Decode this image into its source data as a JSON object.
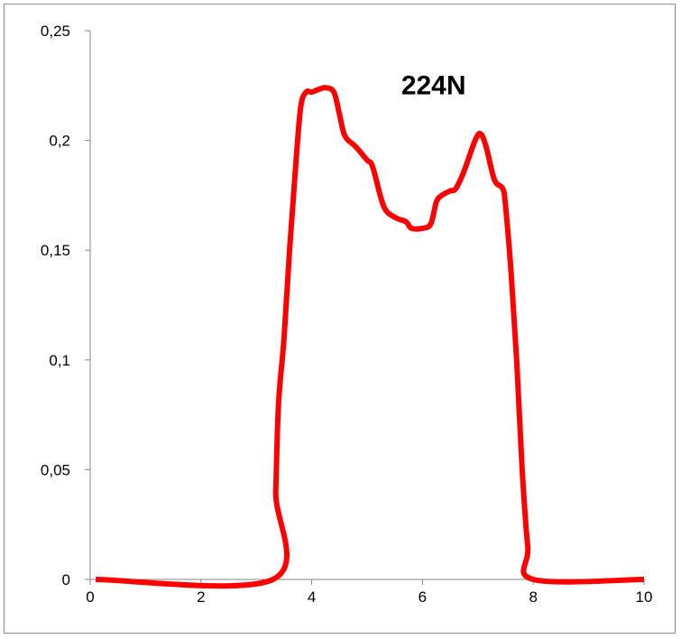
{
  "colors": {
    "series": "#ff0000",
    "axis": "#868686",
    "frame": "#8c8c8c"
  },
  "chart_data": {
    "type": "line",
    "title": "",
    "xlabel": "",
    "ylabel": "",
    "xlim": [
      0,
      10
    ],
    "ylim": [
      0,
      0.25
    ],
    "grid": false,
    "legend": "none",
    "x_ticks": [
      {
        "value": 0,
        "label": "0"
      },
      {
        "value": 2,
        "label": "2"
      },
      {
        "value": 4,
        "label": "4"
      },
      {
        "value": 6,
        "label": "6"
      },
      {
        "value": 8,
        "label": "8"
      },
      {
        "value": 10,
        "label": "10"
      }
    ],
    "y_ticks": [
      {
        "value": 0,
        "label": "0"
      },
      {
        "value": 0.05,
        "label": "0,05"
      },
      {
        "value": 0.1,
        "label": "0,1"
      },
      {
        "value": 0.15,
        "label": "0,15"
      },
      {
        "value": 0.2,
        "label": "0,2"
      },
      {
        "value": 0.25,
        "label": "0,25"
      }
    ],
    "annotations": [
      {
        "text": "224N",
        "x": 6.2,
        "y": 0.221
      }
    ],
    "series": [
      {
        "color": "#ff0000",
        "x": [
          0.1,
          3.3,
          3.35,
          3.4,
          3.5,
          3.6,
          3.7,
          3.8,
          3.9,
          4.0,
          4.1,
          4.25,
          4.4,
          4.5,
          4.6,
          4.8,
          5.0,
          5.1,
          5.3,
          5.5,
          5.7,
          5.8,
          6.0,
          6.15,
          6.25,
          6.35,
          6.5,
          6.6,
          6.75,
          6.95,
          7.05,
          7.15,
          7.3,
          7.45,
          7.5,
          7.6,
          7.7,
          7.8,
          7.9,
          8.0,
          10.0
        ],
        "y": [
          0,
          0,
          0.04,
          0.08,
          0.11,
          0.15,
          0.185,
          0.215,
          0.222,
          0.222,
          0.223,
          0.224,
          0.222,
          0.212,
          0.202,
          0.197,
          0.191,
          0.188,
          0.17,
          0.165,
          0.163,
          0.16,
          0.16,
          0.162,
          0.172,
          0.175,
          0.177,
          0.178,
          0.186,
          0.2,
          0.203,
          0.197,
          0.182,
          0.178,
          0.17,
          0.14,
          0.1,
          0.05,
          0.015,
          0,
          0
        ]
      }
    ]
  }
}
